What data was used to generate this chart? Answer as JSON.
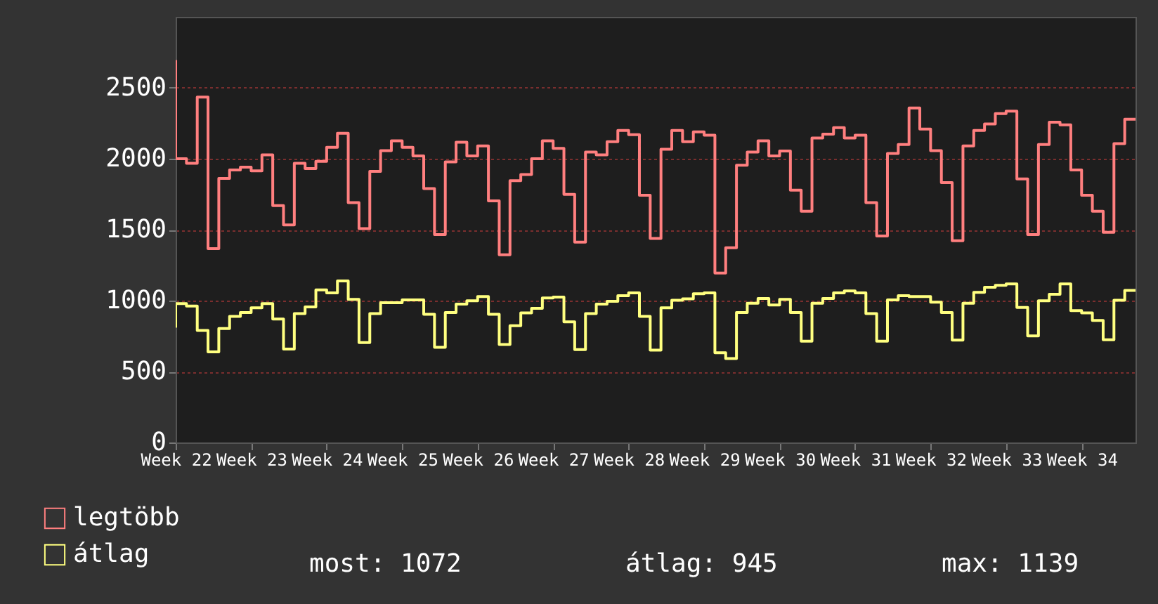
{
  "chart_data": {
    "type": "step",
    "legend": "bottom",
    "grid": "y",
    "line_style": "solid",
    "marker": "none",
    "ylim": [
      0,
      3000
    ],
    "categories": [
      "Week 22",
      null,
      null,
      null,
      null,
      null,
      null,
      "Week 23",
      null,
      null,
      null,
      null,
      null,
      null,
      "Week 24",
      null,
      null,
      null,
      null,
      null,
      null,
      "Week 25",
      null,
      null,
      null,
      null,
      null,
      null,
      "Week 26",
      null,
      null,
      null,
      null,
      null,
      null,
      "Week 27",
      null,
      null,
      null,
      null,
      null,
      null,
      "Week 28",
      null,
      null,
      null,
      null,
      null,
      null,
      "Week 29",
      null,
      null,
      null,
      null,
      null,
      null,
      "Week 30",
      null,
      null,
      null,
      null,
      null,
      null,
      "Week 31",
      null,
      null,
      null,
      null,
      null,
      null,
      "Week 32",
      null,
      null,
      null,
      null,
      null,
      null,
      "Week 33",
      null,
      null,
      null,
      null,
      null,
      null,
      "Week 34",
      null,
      null,
      null,
      null,
      null
    ],
    "yticks": [
      0,
      500,
      1000,
      1500,
      2000,
      2500
    ],
    "annotations": [
      "most: 1072",
      "átlag: 945",
      "max: 1139"
    ],
    "series": [
      {
        "name": "legtöbb",
        "color": "#ff7f7f",
        "values": [
          2695,
          2000,
          1968,
          2434,
          1366,
          1862,
          1921,
          1941,
          1915,
          2027,
          1670,
          1534,
          1968,
          1931,
          1981,
          2080,
          2179,
          1690,
          1508,
          1911,
          2057,
          2126,
          2080,
          2020,
          1789,
          1465,
          1978,
          2116,
          2020,
          2090,
          1703,
          1323,
          1845,
          1888,
          2000,
          2126,
          2073,
          1749,
          1412,
          2047,
          2027,
          2120,
          2199,
          2169,
          1743,
          1438,
          2067,
          2199,
          2120,
          2189,
          2166,
          1194,
          1372,
          1954,
          2047,
          2126,
          2020,
          2054,
          1779,
          1630,
          2146,
          2173,
          2219,
          2146,
          2166,
          1690,
          1455,
          2037,
          2100,
          2358,
          2209,
          2057,
          1832,
          1422,
          2090,
          2199,
          2245,
          2318,
          2335,
          1858,
          1465,
          2100,
          2258,
          2239,
          1921,
          1743,
          1630,
          1481,
          2106,
          2278
        ]
      },
      {
        "name": "átlag",
        "color": "#ffff80",
        "values": [
          810,
          979,
          962,
          790,
          638,
          803,
          889,
          916,
          949,
          979,
          870,
          658,
          909,
          955,
          1075,
          1055,
          1139,
          1009,
          704,
          909,
          985,
          985,
          1005,
          1005,
          903,
          671,
          916,
          975,
          999,
          1028,
          903,
          691,
          823,
          913,
          946,
          1018,
          1025,
          850,
          655,
          909,
          975,
          995,
          1035,
          1055,
          889,
          651,
          949,
          1002,
          1012,
          1048,
          1055,
          632,
          592,
          916,
          982,
          1015,
          969,
          1009,
          916,
          714,
          982,
          1015,
          1055,
          1068,
          1055,
          909,
          714,
          1005,
          1035,
          1028,
          1028,
          989,
          916,
          721,
          982,
          1058,
          1094,
          1108,
          1118,
          952,
          751,
          999,
          1045,
          1118,
          929,
          913,
          860,
          724,
          1002,
          1072
        ]
      }
    ]
  }
}
